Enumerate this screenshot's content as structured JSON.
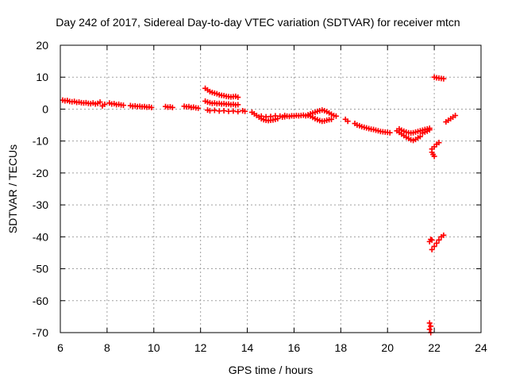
{
  "chart_data": {
    "type": "scatter",
    "title": "Day 242 of 2017, Sidereal Day-to-day VTEC variation (SDTVAR) for receiver mtcn",
    "xlabel": "GPS time / hours",
    "ylabel": "SDTVAR / TECUs",
    "xlim": [
      6,
      24
    ],
    "ylim": [
      -70,
      20
    ],
    "x_ticks": [
      6,
      8,
      10,
      12,
      14,
      16,
      18,
      20,
      22,
      24
    ],
    "y_ticks": [
      20,
      10,
      0,
      -10,
      -20,
      -30,
      -40,
      -50,
      -60,
      -70
    ],
    "x_tick_labels": [
      "6",
      "8",
      "10",
      "12",
      "14",
      "16",
      "18",
      "20",
      "22",
      "24"
    ],
    "y_tick_labels": [
      "20",
      "10",
      "0",
      "-10",
      "-20",
      "-30",
      "-40",
      "-50",
      "-60",
      "-70"
    ],
    "grid": true,
    "marker": "+",
    "series": [
      {
        "name": "SDTVAR",
        "color": "#ff0000",
        "points": [
          [
            6.1,
            2.8
          ],
          [
            6.2,
            2.6
          ],
          [
            6.3,
            2.7
          ],
          [
            6.4,
            2.4
          ],
          [
            6.5,
            2.3
          ],
          [
            6.6,
            2.4
          ],
          [
            6.7,
            2.1
          ],
          [
            6.8,
            2.2
          ],
          [
            6.9,
            2.0
          ],
          [
            7.0,
            1.9
          ],
          [
            7.1,
            2.0
          ],
          [
            7.2,
            1.8
          ],
          [
            7.3,
            1.7
          ],
          [
            7.4,
            1.9
          ],
          [
            7.5,
            1.6
          ],
          [
            7.6,
            1.8
          ],
          [
            7.7,
            2.2
          ],
          [
            7.8,
            1.0
          ],
          [
            7.9,
            1.5
          ],
          [
            8.1,
            1.9
          ],
          [
            8.2,
            1.6
          ],
          [
            8.3,
            1.7
          ],
          [
            8.4,
            1.4
          ],
          [
            8.5,
            1.5
          ],
          [
            8.6,
            1.3
          ],
          [
            8.7,
            1.2
          ],
          [
            9.0,
            1.1
          ],
          [
            9.1,
            0.9
          ],
          [
            9.2,
            1.0
          ],
          [
            9.3,
            0.8
          ],
          [
            9.4,
            0.9
          ],
          [
            9.5,
            0.7
          ],
          [
            9.6,
            0.8
          ],
          [
            9.7,
            0.6
          ],
          [
            9.8,
            0.7
          ],
          [
            9.9,
            0.5
          ],
          [
            10.5,
            0.8
          ],
          [
            10.6,
            0.6
          ],
          [
            10.7,
            0.7
          ],
          [
            10.8,
            0.5
          ],
          [
            11.3,
            0.9
          ],
          [
            11.4,
            0.7
          ],
          [
            11.5,
            0.8
          ],
          [
            11.6,
            0.5
          ],
          [
            11.7,
            0.6
          ],
          [
            11.8,
            0.4
          ],
          [
            11.9,
            0.3
          ],
          [
            12.2,
            6.5
          ],
          [
            12.3,
            6.0
          ],
          [
            12.4,
            5.5
          ],
          [
            12.5,
            5.2
          ],
          [
            12.6,
            5.0
          ],
          [
            12.7,
            4.8
          ],
          [
            12.8,
            4.5
          ],
          [
            12.9,
            4.3
          ],
          [
            13.0,
            4.2
          ],
          [
            13.1,
            4.0
          ],
          [
            13.2,
            3.9
          ],
          [
            13.3,
            3.8
          ],
          [
            13.4,
            3.9
          ],
          [
            13.5,
            4.0
          ],
          [
            13.6,
            3.7
          ],
          [
            12.2,
            2.5
          ],
          [
            12.3,
            2.2
          ],
          [
            12.4,
            2.0
          ],
          [
            12.5,
            1.8
          ],
          [
            12.6,
            1.9
          ],
          [
            12.7,
            1.7
          ],
          [
            12.8,
            1.8
          ],
          [
            12.9,
            1.6
          ],
          [
            13.0,
            1.7
          ],
          [
            13.1,
            1.5
          ],
          [
            13.2,
            1.6
          ],
          [
            13.3,
            1.4
          ],
          [
            13.4,
            1.5
          ],
          [
            13.5,
            1.3
          ],
          [
            13.6,
            1.4
          ],
          [
            12.3,
            -0.3
          ],
          [
            12.4,
            -0.5
          ],
          [
            12.6,
            -0.4
          ],
          [
            12.8,
            -0.6
          ],
          [
            13.0,
            -0.5
          ],
          [
            13.2,
            -0.7
          ],
          [
            13.4,
            -0.6
          ],
          [
            13.6,
            -0.8
          ],
          [
            13.8,
            -0.5
          ],
          [
            13.9,
            -0.7
          ],
          [
            14.2,
            -1.0
          ],
          [
            14.3,
            -1.5
          ],
          [
            14.4,
            -2.0
          ],
          [
            14.5,
            -2.5
          ],
          [
            14.6,
            -3.0
          ],
          [
            14.7,
            -3.3
          ],
          [
            14.8,
            -3.5
          ],
          [
            14.9,
            -3.6
          ],
          [
            15.0,
            -3.5
          ],
          [
            15.1,
            -3.4
          ],
          [
            15.2,
            -3.2
          ],
          [
            15.3,
            -3.0
          ],
          [
            14.6,
            -2.2
          ],
          [
            14.8,
            -2.4
          ],
          [
            15.0,
            -2.3
          ],
          [
            15.2,
            -2.1
          ],
          [
            15.4,
            -2.2
          ],
          [
            15.6,
            -2.0
          ],
          [
            15.5,
            -2.5
          ],
          [
            15.6,
            -2.4
          ],
          [
            15.7,
            -2.2
          ],
          [
            15.8,
            -2.3
          ],
          [
            15.9,
            -2.1
          ],
          [
            16.0,
            -2.2
          ],
          [
            16.1,
            -2.0
          ],
          [
            16.2,
            -2.1
          ],
          [
            16.3,
            -2.0
          ],
          [
            16.4,
            -1.9
          ],
          [
            16.5,
            -2.1
          ],
          [
            16.6,
            -2.0
          ],
          [
            16.6,
            -1.8
          ],
          [
            16.7,
            -1.5
          ],
          [
            16.8,
            -1.2
          ],
          [
            16.9,
            -1.0
          ],
          [
            17.0,
            -0.7
          ],
          [
            17.1,
            -0.5
          ],
          [
            17.2,
            -0.3
          ],
          [
            17.3,
            -0.5
          ],
          [
            17.4,
            -0.8
          ],
          [
            17.5,
            -1.2
          ],
          [
            17.6,
            -1.6
          ],
          [
            17.7,
            -2.0
          ],
          [
            17.8,
            -2.2
          ],
          [
            16.7,
            -2.2
          ],
          [
            16.8,
            -2.6
          ],
          [
            16.9,
            -3.0
          ],
          [
            17.0,
            -3.3
          ],
          [
            17.1,
            -3.6
          ],
          [
            17.2,
            -3.8
          ],
          [
            17.3,
            -3.7
          ],
          [
            17.4,
            -3.5
          ],
          [
            17.5,
            -3.3
          ],
          [
            17.6,
            -3.2
          ],
          [
            18.2,
            -3.2
          ],
          [
            18.3,
            -3.8
          ],
          [
            18.6,
            -4.5
          ],
          [
            18.7,
            -5.0
          ],
          [
            18.8,
            -5.2
          ],
          [
            18.9,
            -5.5
          ],
          [
            19.0,
            -5.7
          ],
          [
            19.1,
            -5.9
          ],
          [
            19.2,
            -6.1
          ],
          [
            19.3,
            -6.3
          ],
          [
            19.4,
            -6.4
          ],
          [
            19.5,
            -6.6
          ],
          [
            19.6,
            -6.8
          ],
          [
            19.7,
            -7.0
          ],
          [
            19.8,
            -7.1
          ],
          [
            19.9,
            -7.2
          ],
          [
            20.0,
            -7.3
          ],
          [
            20.1,
            -7.4
          ],
          [
            20.4,
            -6.8
          ],
          [
            20.5,
            -7.3
          ],
          [
            20.6,
            -7.8
          ],
          [
            20.7,
            -8.3
          ],
          [
            20.8,
            -8.8
          ],
          [
            20.9,
            -9.2
          ],
          [
            21.0,
            -9.6
          ],
          [
            21.1,
            -9.8
          ],
          [
            21.2,
            -9.5
          ],
          [
            21.3,
            -9.0
          ],
          [
            21.4,
            -8.6
          ],
          [
            20.5,
            -6.2
          ],
          [
            20.6,
            -6.6
          ],
          [
            20.7,
            -6.9
          ],
          [
            20.8,
            -7.2
          ],
          [
            20.9,
            -7.4
          ],
          [
            21.0,
            -7.5
          ],
          [
            21.1,
            -7.4
          ],
          [
            21.2,
            -7.2
          ],
          [
            21.3,
            -7.0
          ],
          [
            21.4,
            -6.8
          ],
          [
            21.5,
            -6.6
          ],
          [
            21.6,
            -6.4
          ],
          [
            21.7,
            -6.2
          ],
          [
            21.8,
            -6.0
          ],
          [
            21.5,
            -7.5
          ],
          [
            21.6,
            -7.2
          ],
          [
            21.7,
            -6.9
          ],
          [
            21.8,
            -6.5
          ],
          [
            21.9,
            -12.5
          ],
          [
            22.0,
            -11.8
          ],
          [
            22.1,
            -11.0
          ],
          [
            22.2,
            -10.5
          ],
          [
            21.9,
            -13.5
          ],
          [
            21.95,
            -14.2
          ],
          [
            22.0,
            -14.8
          ],
          [
            22.0,
            10.0
          ],
          [
            22.1,
            9.8
          ],
          [
            22.2,
            9.7
          ],
          [
            22.3,
            9.6
          ],
          [
            22.4,
            9.5
          ],
          [
            22.5,
            -4.0
          ],
          [
            22.6,
            -3.5
          ],
          [
            22.7,
            -3.0
          ],
          [
            22.8,
            -2.5
          ],
          [
            22.9,
            -2.0
          ],
          [
            21.8,
            -41.5
          ],
          [
            21.9,
            -41.0
          ],
          [
            21.85,
            -40.8
          ],
          [
            21.9,
            -44.0
          ],
          [
            22.0,
            -43.0
          ],
          [
            22.1,
            -42.0
          ],
          [
            22.2,
            -41.0
          ],
          [
            22.3,
            -40.0
          ],
          [
            22.4,
            -39.5
          ],
          [
            21.8,
            -67.0
          ],
          [
            21.85,
            -68.0
          ],
          [
            21.8,
            -69.0
          ],
          [
            21.85,
            -70.0
          ]
        ]
      }
    ]
  }
}
